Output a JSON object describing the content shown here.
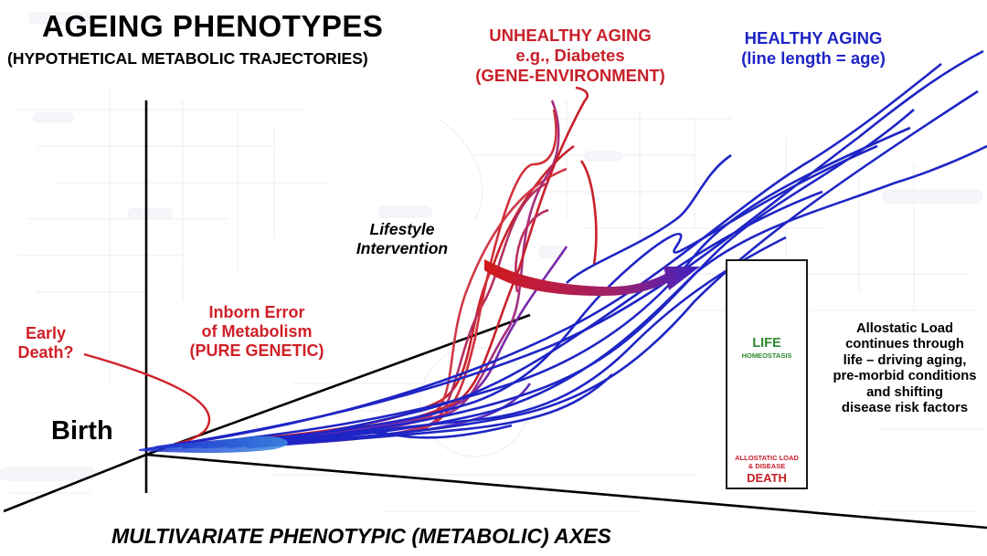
{
  "title": "AGEING PHENOTYPES",
  "subtitle": "(HYPOTHETICAL METABOLIC TRAJECTORIES)",
  "unhealthy": {
    "line1": "UNHEALTHY AGING",
    "line2": "e.g., Diabetes",
    "line3": "(GENE-ENVIRONMENT)"
  },
  "healthy": {
    "line1": "HEALTHY AGING",
    "line2": "(line length = age)"
  },
  "lifestyle": {
    "line1": "Lifestyle",
    "line2": "Intervention"
  },
  "inborn": {
    "line1": "Inborn Error",
    "line2": "of Metabolism",
    "line3": "(PURE GENETIC)"
  },
  "early_death": {
    "line1": "Early",
    "line2": "Death?"
  },
  "birth": "Birth",
  "axes_label": "MULTIVARIATE PHENOTYPIC (METABOLIC) AXES",
  "scale_box": {
    "life": "LIFE",
    "homeostasis": "HOMEOSTASIS",
    "allostatic_line1": "ALLOSTATIC LOAD",
    "allostatic_line2": "& DISEASE",
    "death": "DEATH"
  },
  "allostatic_note": [
    "Allostatic Load",
    "continues through",
    "life – driving aging,",
    "pre-morbid conditions",
    "and shifting",
    "disease risk factors"
  ],
  "colors": {
    "healthy_blue": "#1f25c4",
    "unhealthy_red": "#c8202a",
    "life_green": "#2f8a2f",
    "background_pathways": "#e9e9ef"
  }
}
